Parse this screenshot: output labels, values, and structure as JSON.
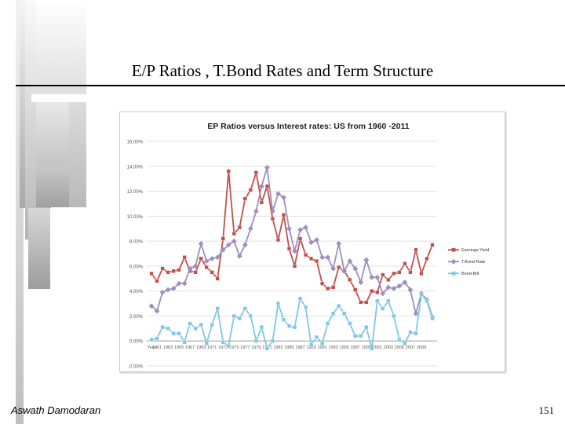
{
  "slide": {
    "title": "E/P Ratios , T.Bond Rates and Term Structure",
    "author": "Aswath Damodaran",
    "page_number": "151"
  },
  "chart_data": {
    "type": "line",
    "title": "EP Ratios versus Interest rates: US from 1960 -2011",
    "x_axis_first_label": "Year",
    "x": [
      1960,
      1961,
      1962,
      1963,
      1964,
      1965,
      1966,
      1967,
      1968,
      1969,
      1970,
      1971,
      1972,
      1973,
      1974,
      1975,
      1976,
      1977,
      1978,
      1979,
      1980,
      1981,
      1982,
      1983,
      1984,
      1985,
      1986,
      1987,
      1988,
      1989,
      1990,
      1991,
      1992,
      1993,
      1994,
      1995,
      1996,
      1997,
      1998,
      1999,
      2000,
      2001,
      2002,
      2003,
      2004,
      2005,
      2006,
      2007,
      2008,
      2009,
      2010,
      2011
    ],
    "x_tick_labels": [
      "1961",
      "1963",
      "1965",
      "1967",
      "1969",
      "1971",
      "1973",
      "1975",
      "1977",
      "1979",
      "1981",
      "1983",
      "1985",
      "1987",
      "1989",
      "1991",
      "1993",
      "1995",
      "1997",
      "1999",
      "2001",
      "2003",
      "2005",
      "2007",
      "2009"
    ],
    "x_tick_years": [
      1961,
      1963,
      1965,
      1967,
      1969,
      1971,
      1973,
      1975,
      1977,
      1979,
      1981,
      1983,
      1985,
      1987,
      1989,
      1991,
      1993,
      1995,
      1997,
      1999,
      2001,
      2003,
      2005,
      2007,
      2009
    ],
    "y_ticks": [
      -2,
      0,
      2,
      4,
      6,
      8,
      10,
      12,
      14,
      16
    ],
    "y_tick_labels": [
      "-2.00%",
      "0.00%",
      "2.00%",
      "4.00%",
      "6.00%",
      "8.00%",
      "10.00%",
      "12.00%",
      "14.00%",
      "16.00%"
    ],
    "ylim": [
      -2,
      16
    ],
    "legend_position": "right",
    "series": [
      {
        "name": "Earnings Yield",
        "color": "#c0504d",
        "marker": "square",
        "values": [
          5.4,
          4.8,
          5.8,
          5.5,
          5.6,
          5.7,
          6.7,
          5.6,
          5.5,
          6.6,
          5.9,
          5.5,
          5.0,
          8.2,
          13.6,
          8.6,
          9.1,
          11.4,
          12.1,
          13.5,
          11.1,
          12.4,
          9.8,
          8.1,
          10.1,
          7.4,
          6.0,
          8.2,
          6.9,
          6.6,
          6.4,
          4.6,
          4.2,
          4.3,
          5.9,
          5.6,
          4.9,
          4.1,
          3.1,
          3.1,
          4.0,
          3.9,
          5.3,
          4.9,
          5.4,
          5.5,
          6.2,
          5.5,
          7.3,
          5.4,
          6.6,
          7.7
        ]
      },
      {
        "name": "T.Bond Rate",
        "color": "#9f8fbf",
        "marker": "diamond",
        "values": [
          2.8,
          2.4,
          3.9,
          4.1,
          4.2,
          4.6,
          4.6,
          5.8,
          6.0,
          7.8,
          6.4,
          6.6,
          6.7,
          7.3,
          7.7,
          8.0,
          6.8,
          7.7,
          9.0,
          10.4,
          12.4,
          13.9,
          10.4,
          11.8,
          11.5,
          9.0,
          7.2,
          8.9,
          9.1,
          7.9,
          8.1,
          6.7,
          6.7,
          5.8,
          7.8,
          5.6,
          6.4,
          5.8,
          4.7,
          6.5,
          5.1,
          5.1,
          3.8,
          4.3,
          4.2,
          4.4,
          4.7,
          4.1,
          2.2,
          3.8,
          3.3,
          1.9
        ]
      },
      {
        "name": "Bond-Bill",
        "color": "#7ec8e3",
        "marker": "square",
        "values": [
          0.1,
          0.2,
          1.1,
          1.0,
          0.6,
          0.6,
          -0.1,
          1.4,
          1.0,
          1.3,
          -0.2,
          1.3,
          2.6,
          -0.1,
          -0.4,
          2.0,
          1.8,
          2.6,
          2.0,
          0.0,
          1.1,
          -0.6,
          0.0,
          3.0,
          1.7,
          1.2,
          1.1,
          3.4,
          2.7,
          -0.3,
          0.3,
          -0.2,
          1.4,
          2.2,
          2.8,
          2.2,
          1.4,
          0.4,
          0.4,
          1.1,
          -0.6,
          3.2,
          2.6,
          3.2,
          2.0,
          0.1,
          -0.2,
          0.7,
          0.6,
          3.7,
          3.2,
          1.8
        ]
      }
    ]
  }
}
